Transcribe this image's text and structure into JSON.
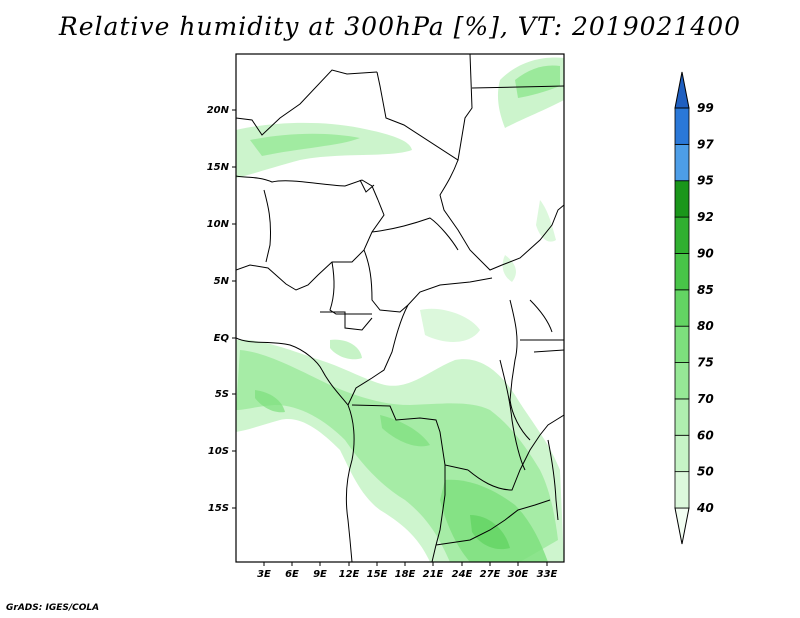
{
  "title": "Relative humidity at 300hPa [%], VT: 2019021400",
  "credit": "GrADS: IGES/COLA",
  "lat_labels": [
    "20N",
    "15N",
    "10N",
    "5N",
    "EQ",
    "5S",
    "10S",
    "15S"
  ],
  "lon_labels": [
    "3E",
    "6E",
    "9E",
    "12E",
    "15E",
    "18E",
    "21E",
    "24E",
    "27E",
    "30E",
    "33E"
  ],
  "colorbar": {
    "levels": [
      "40",
      "50",
      "60",
      "70",
      "75",
      "80",
      "85",
      "90",
      "92",
      "95",
      "97",
      "99"
    ],
    "colors": [
      "#f2fdf2",
      "#dcf8dc",
      "#c6f3c6",
      "#b0eeb0",
      "#96e896",
      "#7de07d",
      "#63d463",
      "#48c448",
      "#30b030",
      "#1a961a",
      "#4d9ee8",
      "#2a78d8",
      "#1f5fc0"
    ]
  }
}
